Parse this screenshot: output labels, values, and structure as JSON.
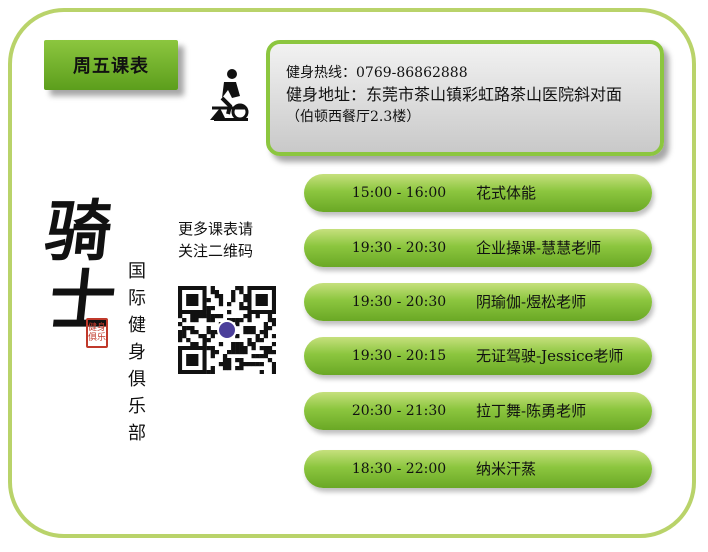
{
  "day_title": "周五课表",
  "contact": {
    "hotline": "健身热线：0769-86862888",
    "address": "健身地址：东莞市茶山镇彩虹路茶山医院斜对面",
    "address_note": "（伯顿西餐厅2.3楼）"
  },
  "logo": {
    "char1": "骑",
    "char2": "士",
    "seal_text": "健身俱乐",
    "vertical_text": [
      "国",
      "际",
      "健",
      "身",
      "俱",
      "乐",
      "部"
    ]
  },
  "qr_caption": {
    "line1": "更多课表请",
    "line2": "关注二维码"
  },
  "schedule": [
    {
      "time": "15:00 - 16:00",
      "class": "花式体能"
    },
    {
      "time": "19:30 - 20:30",
      "class": "企业操课-慧慧老师"
    },
    {
      "time": "19:30 - 20:30",
      "class": "阴瑜伽-煜松老师"
    },
    {
      "time": "19:30 - 20:15",
      "class": "无证驾驶-Jessice老师"
    },
    {
      "time": "20:30 - 21:30",
      "class": "拉丁舞-陈勇老师"
    },
    {
      "time": "18:30 - 22:00",
      "class": "纳米汗蒸"
    }
  ],
  "icons": {
    "cyclist": "cyclist-icon",
    "qr": "qr-code-icon"
  },
  "colors": {
    "accent_green": "#8cc63f",
    "frame_green": "#b9d36a",
    "seal_red": "#c0392b"
  }
}
